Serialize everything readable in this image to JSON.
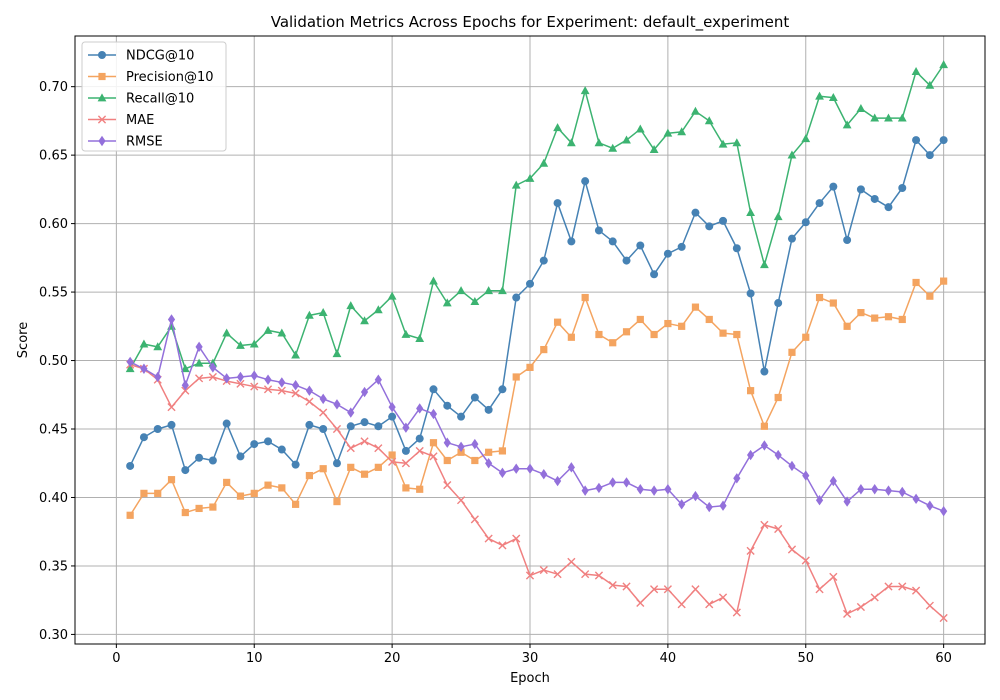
{
  "chart_data": {
    "type": "line",
    "title": "Validation Metrics Across Epochs for Experiment: default_experiment",
    "xlabel": "Epoch",
    "ylabel": "Score",
    "xlim": [
      -3,
      63
    ],
    "ylim": [
      0.293,
      0.737
    ],
    "xticks": [
      0,
      10,
      20,
      30,
      40,
      50,
      60
    ],
    "yticks": [
      0.3,
      0.35,
      0.4,
      0.45,
      0.5,
      0.55,
      0.6,
      0.65,
      0.7
    ],
    "grid": true,
    "legend_position": "top-left",
    "x": [
      1,
      2,
      3,
      4,
      5,
      6,
      7,
      8,
      9,
      10,
      11,
      12,
      13,
      14,
      15,
      16,
      17,
      18,
      19,
      20,
      21,
      22,
      23,
      24,
      25,
      26,
      27,
      28,
      29,
      30,
      31,
      32,
      33,
      34,
      35,
      36,
      37,
      38,
      39,
      40,
      41,
      42,
      43,
      44,
      45,
      46,
      47,
      48,
      49,
      50,
      51,
      52,
      53,
      54,
      55,
      56,
      57,
      58,
      59,
      60
    ],
    "series": [
      {
        "name": "NDCG@10",
        "color": "#4682b4",
        "marker": "circle",
        "values": [
          0.423,
          0.444,
          0.45,
          0.453,
          0.42,
          0.429,
          0.427,
          0.454,
          0.43,
          0.439,
          0.441,
          0.435,
          0.424,
          0.453,
          0.45,
          0.425,
          0.452,
          0.455,
          0.452,
          0.459,
          0.434,
          0.443,
          0.479,
          0.467,
          0.459,
          0.473,
          0.464,
          0.479,
          0.546,
          0.556,
          0.573,
          0.615,
          0.587,
          0.631,
          0.595,
          0.587,
          0.573,
          0.584,
          0.563,
          0.578,
          0.583,
          0.608,
          0.598,
          0.602,
          0.582,
          0.549,
          0.492,
          0.542,
          0.589,
          0.601,
          0.615,
          0.627,
          0.588,
          0.625,
          0.618,
          0.612,
          0.626,
          0.661,
          0.65,
          0.661
        ]
      },
      {
        "name": "Precision@10",
        "color": "#f4a460",
        "marker": "square",
        "values": [
          0.387,
          0.403,
          0.403,
          0.413,
          0.389,
          0.392,
          0.393,
          0.411,
          0.401,
          0.403,
          0.409,
          0.407,
          0.395,
          0.416,
          0.421,
          0.397,
          0.422,
          0.417,
          0.422,
          0.431,
          0.407,
          0.406,
          0.44,
          0.427,
          0.433,
          0.427,
          0.433,
          0.434,
          0.488,
          0.495,
          0.508,
          0.528,
          0.517,
          0.546,
          0.519,
          0.513,
          0.521,
          0.53,
          0.519,
          0.527,
          0.525,
          0.539,
          0.53,
          0.52,
          0.519,
          0.478,
          0.452,
          0.473,
          0.506,
          0.517,
          0.546,
          0.542,
          0.525,
          0.535,
          0.531,
          0.532,
          0.53,
          0.557,
          0.547,
          0.558
        ]
      },
      {
        "name": "Recall@10",
        "color": "#3cb371",
        "marker": "triangle",
        "values": [
          0.494,
          0.512,
          0.51,
          0.525,
          0.494,
          0.498,
          0.498,
          0.52,
          0.511,
          0.512,
          0.522,
          0.52,
          0.504,
          0.533,
          0.535,
          0.505,
          0.54,
          0.529,
          0.537,
          0.547,
          0.519,
          0.516,
          0.558,
          0.542,
          0.551,
          0.543,
          0.551,
          0.551,
          0.628,
          0.633,
          0.644,
          0.67,
          0.659,
          0.697,
          0.659,
          0.655,
          0.661,
          0.669,
          0.654,
          0.666,
          0.667,
          0.682,
          0.675,
          0.658,
          0.659,
          0.608,
          0.57,
          0.605,
          0.65,
          0.662,
          0.693,
          0.692,
          0.672,
          0.684,
          0.677,
          0.677,
          0.677,
          0.711,
          0.701,
          0.716
        ]
      },
      {
        "name": "MAE",
        "color": "#f08080",
        "marker": "x",
        "values": [
          0.497,
          0.494,
          0.486,
          0.466,
          0.478,
          0.487,
          0.488,
          0.485,
          0.483,
          0.481,
          0.479,
          0.478,
          0.476,
          0.47,
          0.462,
          0.45,
          0.436,
          0.441,
          0.436,
          0.426,
          0.425,
          0.434,
          0.43,
          0.409,
          0.398,
          0.384,
          0.37,
          0.365,
          0.37,
          0.343,
          0.347,
          0.344,
          0.353,
          0.344,
          0.343,
          0.336,
          0.335,
          0.323,
          0.333,
          0.333,
          0.322,
          0.333,
          0.322,
          0.327,
          0.316,
          0.361,
          0.38,
          0.377,
          0.362,
          0.354,
          0.333,
          0.342,
          0.315,
          0.32,
          0.327,
          0.335,
          0.335,
          0.332,
          0.321,
          0.312
        ]
      },
      {
        "name": "RMSE",
        "color": "#9370db",
        "marker": "diamond",
        "values": [
          0.499,
          0.494,
          0.488,
          0.53,
          0.482,
          0.51,
          0.495,
          0.487,
          0.488,
          0.489,
          0.486,
          0.484,
          0.482,
          0.478,
          0.472,
          0.468,
          0.462,
          0.477,
          0.486,
          0.466,
          0.451,
          0.465,
          0.461,
          0.44,
          0.437,
          0.439,
          0.425,
          0.418,
          0.421,
          0.421,
          0.417,
          0.412,
          0.422,
          0.405,
          0.407,
          0.411,
          0.411,
          0.406,
          0.405,
          0.406,
          0.395,
          0.401,
          0.393,
          0.394,
          0.414,
          0.431,
          0.438,
          0.431,
          0.423,
          0.416,
          0.398,
          0.412,
          0.397,
          0.406,
          0.406,
          0.405,
          0.404,
          0.399,
          0.394,
          0.39
        ]
      }
    ]
  }
}
